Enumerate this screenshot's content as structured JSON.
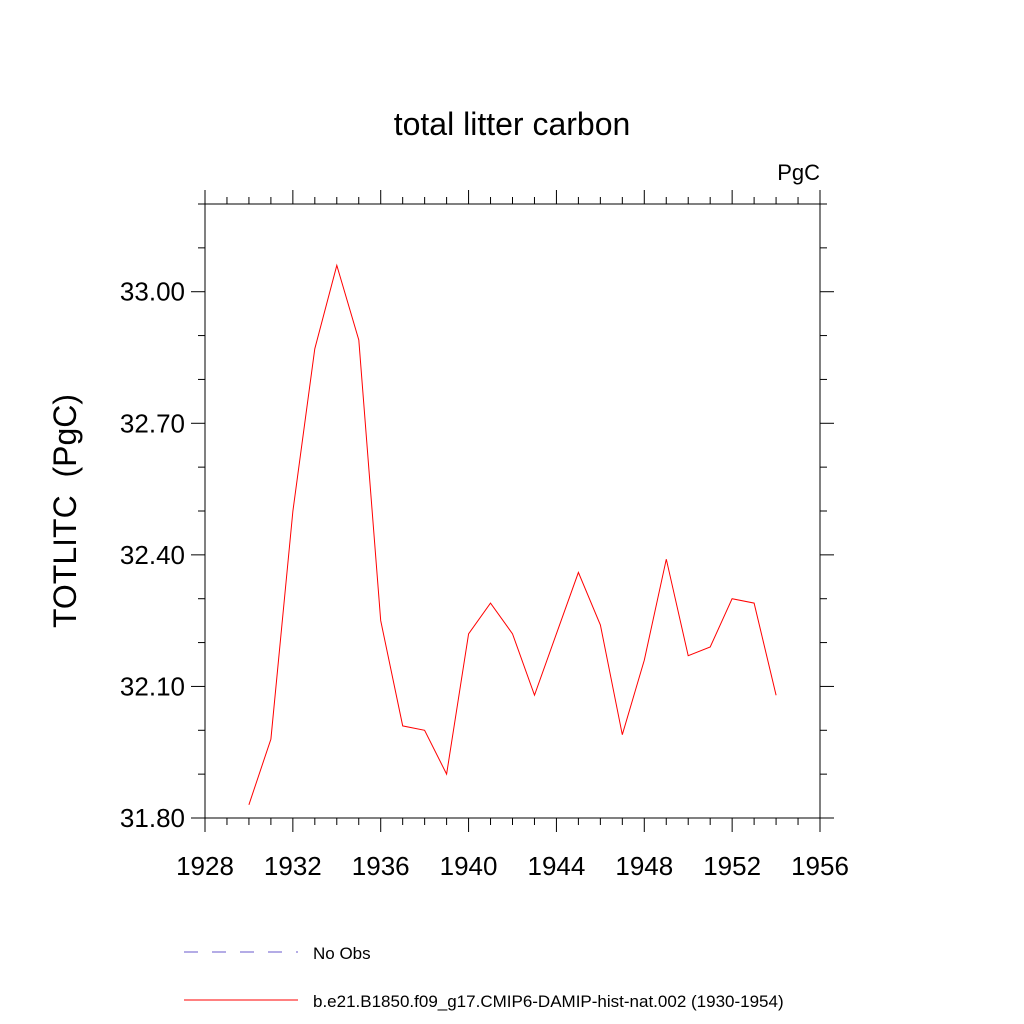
{
  "chart_data": {
    "type": "line",
    "title": "total litter carbon",
    "units_label": "PgC",
    "ylabel": "TOTLITC  (PgC)",
    "xlabel": "",
    "xlim": [
      1928,
      1956
    ],
    "ylim": [
      31.8,
      33.2
    ],
    "x_ticks": [
      1928,
      1932,
      1936,
      1940,
      1944,
      1948,
      1952,
      1956
    ],
    "x_tick_labels": [
      "1928",
      "1932",
      "1936",
      "1940",
      "1944",
      "1948",
      "1952",
      "1956"
    ],
    "y_ticks": [
      31.8,
      32.1,
      32.4,
      32.7,
      33.0
    ],
    "y_tick_labels": [
      "31.80",
      "32.10",
      "32.40",
      "32.70",
      "33.00"
    ],
    "grid": false,
    "legend_position": "bottom",
    "x": [
      1930,
      1931,
      1932,
      1933,
      1934,
      1935,
      1936,
      1937,
      1938,
      1939,
      1940,
      1941,
      1942,
      1943,
      1944,
      1945,
      1946,
      1947,
      1948,
      1949,
      1950,
      1951,
      1952,
      1953,
      1954
    ],
    "series": [
      {
        "name": "b.e21.B1850.f09_g17.CMIP6-DAMIP-hist-nat.002 (1930-1954)",
        "color": "#ff0000",
        "style": "solid",
        "values": [
          31.83,
          31.98,
          32.5,
          32.87,
          33.06,
          32.89,
          32.25,
          32.01,
          32.0,
          31.9,
          32.22,
          32.29,
          32.22,
          32.08,
          32.22,
          32.36,
          32.24,
          31.99,
          32.16,
          32.39,
          32.17,
          32.19,
          32.3,
          32.29,
          32.08
        ]
      }
    ],
    "legend": [
      {
        "label": "No Obs",
        "color": "#6a5acd",
        "style": "dashed"
      },
      {
        "label": "b.e21.B1850.f09_g17.CMIP6-DAMIP-hist-nat.002 (1930-1954)",
        "color": "#ff0000",
        "style": "solid"
      }
    ]
  }
}
